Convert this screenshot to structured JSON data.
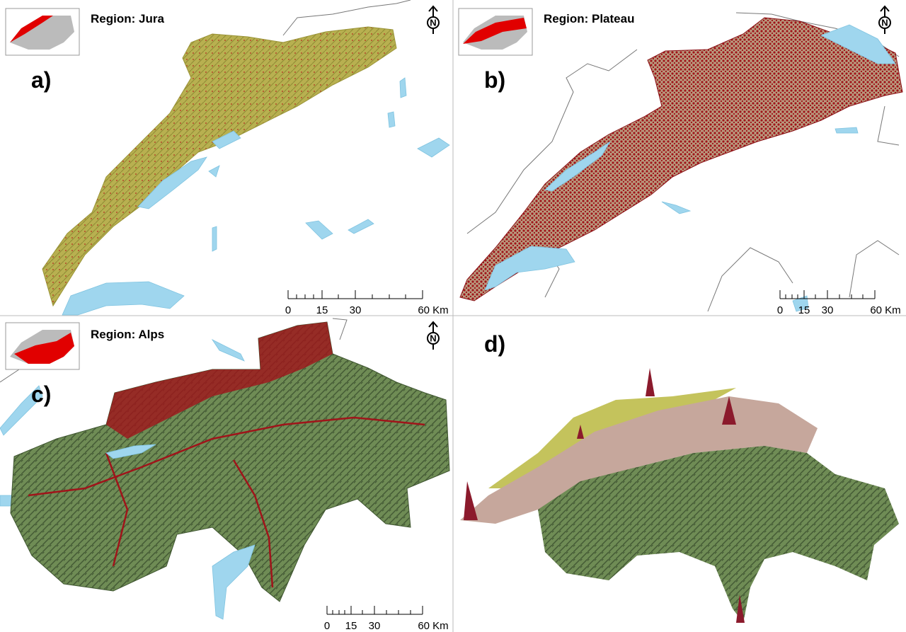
{
  "panels": [
    {
      "label": "a)",
      "region": "Region: Jura",
      "north": "N",
      "scale": [
        "0",
        "15",
        "30",
        "60 Km"
      ]
    },
    {
      "label": "b)",
      "region": "Region: Plateau",
      "north": "N",
      "scale": [
        "0",
        "15",
        "30",
        "60 Km"
      ]
    },
    {
      "label": "c)",
      "region": "Region: Alps",
      "north": "N",
      "scale": [
        "0",
        "15",
        "30",
        "60 Km"
      ]
    },
    {
      "label": "d)"
    }
  ]
}
